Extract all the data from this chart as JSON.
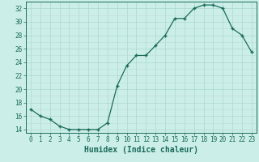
{
  "x": [
    0,
    1,
    2,
    3,
    4,
    5,
    6,
    7,
    8,
    9,
    10,
    11,
    12,
    13,
    14,
    15,
    16,
    17,
    18,
    19,
    20,
    21,
    22,
    23
  ],
  "y": [
    17,
    16,
    15.5,
    14.5,
    14,
    14,
    14,
    14,
    15,
    20.5,
    23.5,
    25,
    25,
    26.5,
    28,
    30.5,
    30.5,
    32,
    32.5,
    32.5,
    32,
    29,
    28,
    25.5
  ],
  "line_color": "#1a6b5a",
  "marker_color": "#1a6b5a",
  "bg_color": "#cceee8",
  "grid_major_color": "#aad8d0",
  "grid_minor_color": "#bbddd8",
  "xlabel": "Humidex (Indice chaleur)",
  "xlim": [
    -0.5,
    23.5
  ],
  "ylim": [
    13.5,
    33
  ],
  "yticks": [
    14,
    16,
    18,
    20,
    22,
    24,
    26,
    28,
    30,
    32
  ],
  "xticks": [
    0,
    1,
    2,
    3,
    4,
    5,
    6,
    7,
    8,
    9,
    10,
    11,
    12,
    13,
    14,
    15,
    16,
    17,
    18,
    19,
    20,
    21,
    22,
    23
  ],
  "font_color": "#1a6b5a",
  "tick_fontsize": 5.5,
  "label_fontsize": 7.0
}
